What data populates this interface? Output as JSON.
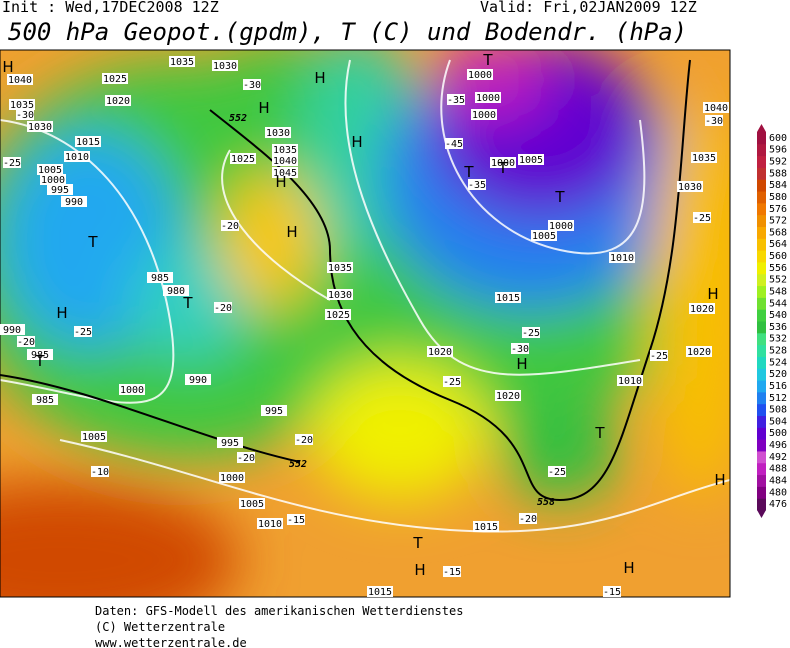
{
  "header": {
    "init": "Init : Wed,17DEC2008 12Z",
    "valid": "Valid: Fri,02JAN2009 12Z",
    "title": "500 hPa Geopot.(gpdm), T (C) und Bodendr. (hPa)"
  },
  "colorbar": {
    "levels": [
      476,
      480,
      484,
      488,
      492,
      496,
      500,
      504,
      508,
      512,
      516,
      520,
      524,
      528,
      532,
      536,
      540,
      544,
      548,
      552,
      556,
      560,
      564,
      568,
      572,
      576,
      580,
      584,
      588,
      592,
      596,
      600
    ],
    "colors": [
      "#5a0a5a",
      "#800080",
      "#a010a0",
      "#c020c0",
      "#d050d0",
      "#8000c0",
      "#6000d0",
      "#4020e0",
      "#2050f0",
      "#2080f0",
      "#20a8f0",
      "#20c8e0",
      "#20d8c0",
      "#30e0a0",
      "#40e080",
      "#30c040",
      "#40d040",
      "#70e030",
      "#a0f020",
      "#d0f020",
      "#f0f000",
      "#f8d800",
      "#f8c000",
      "#f8a800",
      "#f09000",
      "#f07800",
      "#e06000",
      "#d04800",
      "#c03030",
      "#c02040",
      "#b01840",
      "#a01040"
    ]
  },
  "map": {
    "pressure_labels": [
      "1040",
      "1035",
      "1030",
      "1025",
      "1020",
      "1015",
      "1010",
      "1005",
      "1000",
      "995",
      "990",
      "985",
      "980",
      "990",
      "985",
      "985",
      "1000",
      "1005",
      "990",
      "995",
      "995",
      "1000",
      "1005",
      "1010",
      "1015",
      "1015",
      "1035",
      "1030",
      "1030",
      "1035",
      "1040",
      "1045",
      "1025",
      "1035",
      "1030",
      "1025",
      "1020",
      "1020",
      "1015",
      "1010",
      "1010",
      "1005",
      "1000",
      "1005",
      "1000",
      "1000",
      "1000",
      "1000",
      "1020",
      "1030",
      "1035",
      "1040",
      "1020"
    ],
    "temperature_labels": [
      "-30",
      "-30",
      "-25",
      "-20",
      "-25",
      "-20",
      "-20",
      "-20",
      "-20",
      "-10",
      "-15",
      "-15",
      "-15",
      "-45",
      "-35",
      "-30",
      "-25",
      "-25",
      "-25",
      "-25",
      "-25",
      "-20",
      "-35",
      "-30"
    ],
    "geopotential_labels": [
      "552",
      "552",
      "558"
    ],
    "highs": [
      "H",
      "H",
      "H",
      "H",
      "H",
      "H",
      "H",
      "H",
      "H",
      "H",
      "H",
      "H"
    ],
    "lows": [
      "T",
      "T",
      "T",
      "T",
      "T",
      "T",
      "T",
      "T",
      "T"
    ]
  },
  "footer": [
    "Daten: GFS-Modell des amerikanischen Wetterdienstes",
    "(C) Wetterzentrale",
    "www.wetterzentrale.de"
  ]
}
